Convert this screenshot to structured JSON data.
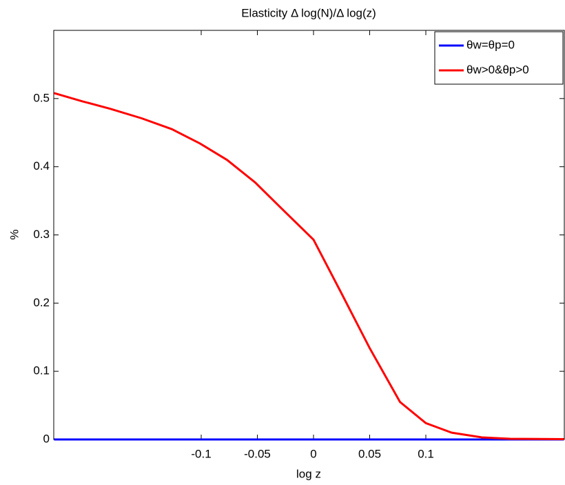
{
  "chart_data": {
    "type": "line",
    "title": "Elasticity Δ log(N)/Δ log(z)",
    "x_label": "log z",
    "y_label": "%",
    "x": [
      -0.231,
      -0.206,
      -0.181,
      -0.153,
      -0.126,
      -0.101,
      -0.077,
      -0.052,
      -0.028,
      0,
      0.025,
      0.05,
      0.077,
      0.1,
      0.123,
      0.15,
      0.175,
      0.223
    ],
    "series": [
      {
        "name": "θw=θp=0",
        "color": "#0000ff",
        "values": [
          0,
          0,
          0,
          0,
          0,
          0,
          0,
          0,
          0,
          0,
          0,
          0,
          0,
          0,
          0,
          0,
          0,
          0
        ]
      },
      {
        "name": "θw>0&θp>0",
        "color": "#ff0000",
        "values": [
          0.508,
          0.496,
          0.485,
          0.471,
          0.455,
          0.434,
          0.41,
          0.377,
          0.338,
          0.293,
          0.214,
          0.134,
          0.055,
          0.024,
          0.01,
          0.003,
          0.001,
          0.0005
        ]
      }
    ],
    "xlim": [
      -0.2313,
      0.2233
    ],
    "ylim": [
      0,
      0.6
    ],
    "xticks": [
      -0.1,
      -0.05,
      0,
      0.05,
      0.1
    ],
    "yticks": [
      0,
      0.1,
      0.2,
      0.3,
      0.4,
      0.5
    ],
    "legend": "upper right"
  }
}
